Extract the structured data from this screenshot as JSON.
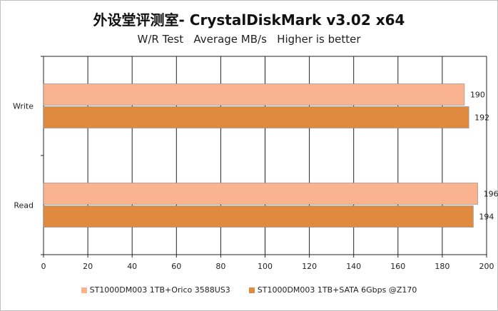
{
  "chart_data": {
    "type": "bar",
    "orientation": "horizontal",
    "title": "外设堂评测室- CrystalDiskMark v3.02 x64",
    "subtitle": "W/R Test   Average MB/s   Higher is better",
    "categories": [
      "Write",
      "Read"
    ],
    "series": [
      {
        "name": "ST1000DM003 1TB+Orico 3588US3",
        "color": "#f9b48f",
        "values": [
          190,
          196
        ]
      },
      {
        "name": "ST1000DM003 1TB+SATA 6Gbps @Z170",
        "color": "#e08a40",
        "values": [
          192,
          194
        ]
      }
    ],
    "xlim": [
      0,
      200
    ],
    "xticks": [
      "0",
      "20",
      "40",
      "60",
      "80",
      "100",
      "120",
      "140",
      "160",
      "180",
      "200"
    ],
    "grid": true,
    "legend_position": "bottom"
  }
}
